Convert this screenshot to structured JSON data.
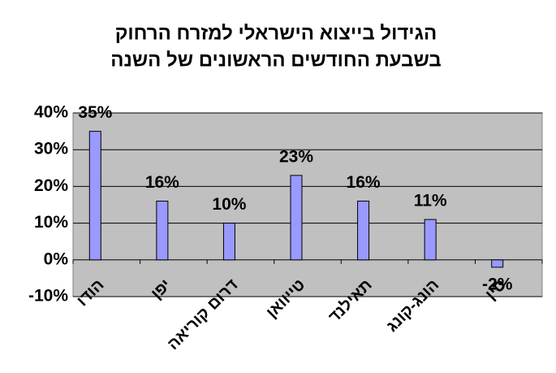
{
  "chart_data": {
    "type": "bar",
    "title": [
      "הגידול בייצוא הישראלי למזרח הרחוק",
      "בשבעת החודשים הראשונים של השנה"
    ],
    "categories": [
      "הודו",
      "יפן",
      "דרום קוריאה",
      "טייוואן",
      "תאילנד",
      "הונג-קונג",
      "סין"
    ],
    "values": [
      35,
      16,
      10,
      23,
      16,
      11,
      -2
    ],
    "value_labels": [
      "35%",
      "16%",
      "10%",
      "23%",
      "16%",
      "11%",
      "-2%"
    ],
    "color": "#9999ff",
    "ylim": [
      -10,
      40
    ],
    "yticks": [
      {
        "value": -10,
        "label": "-10%"
      },
      {
        "value": 0,
        "label": "0%"
      },
      {
        "value": 10,
        "label": "10%"
      },
      {
        "value": 20,
        "label": "20%"
      },
      {
        "value": 30,
        "label": "30%"
      },
      {
        "value": 40,
        "label": "40%"
      }
    ],
    "grid": true
  }
}
